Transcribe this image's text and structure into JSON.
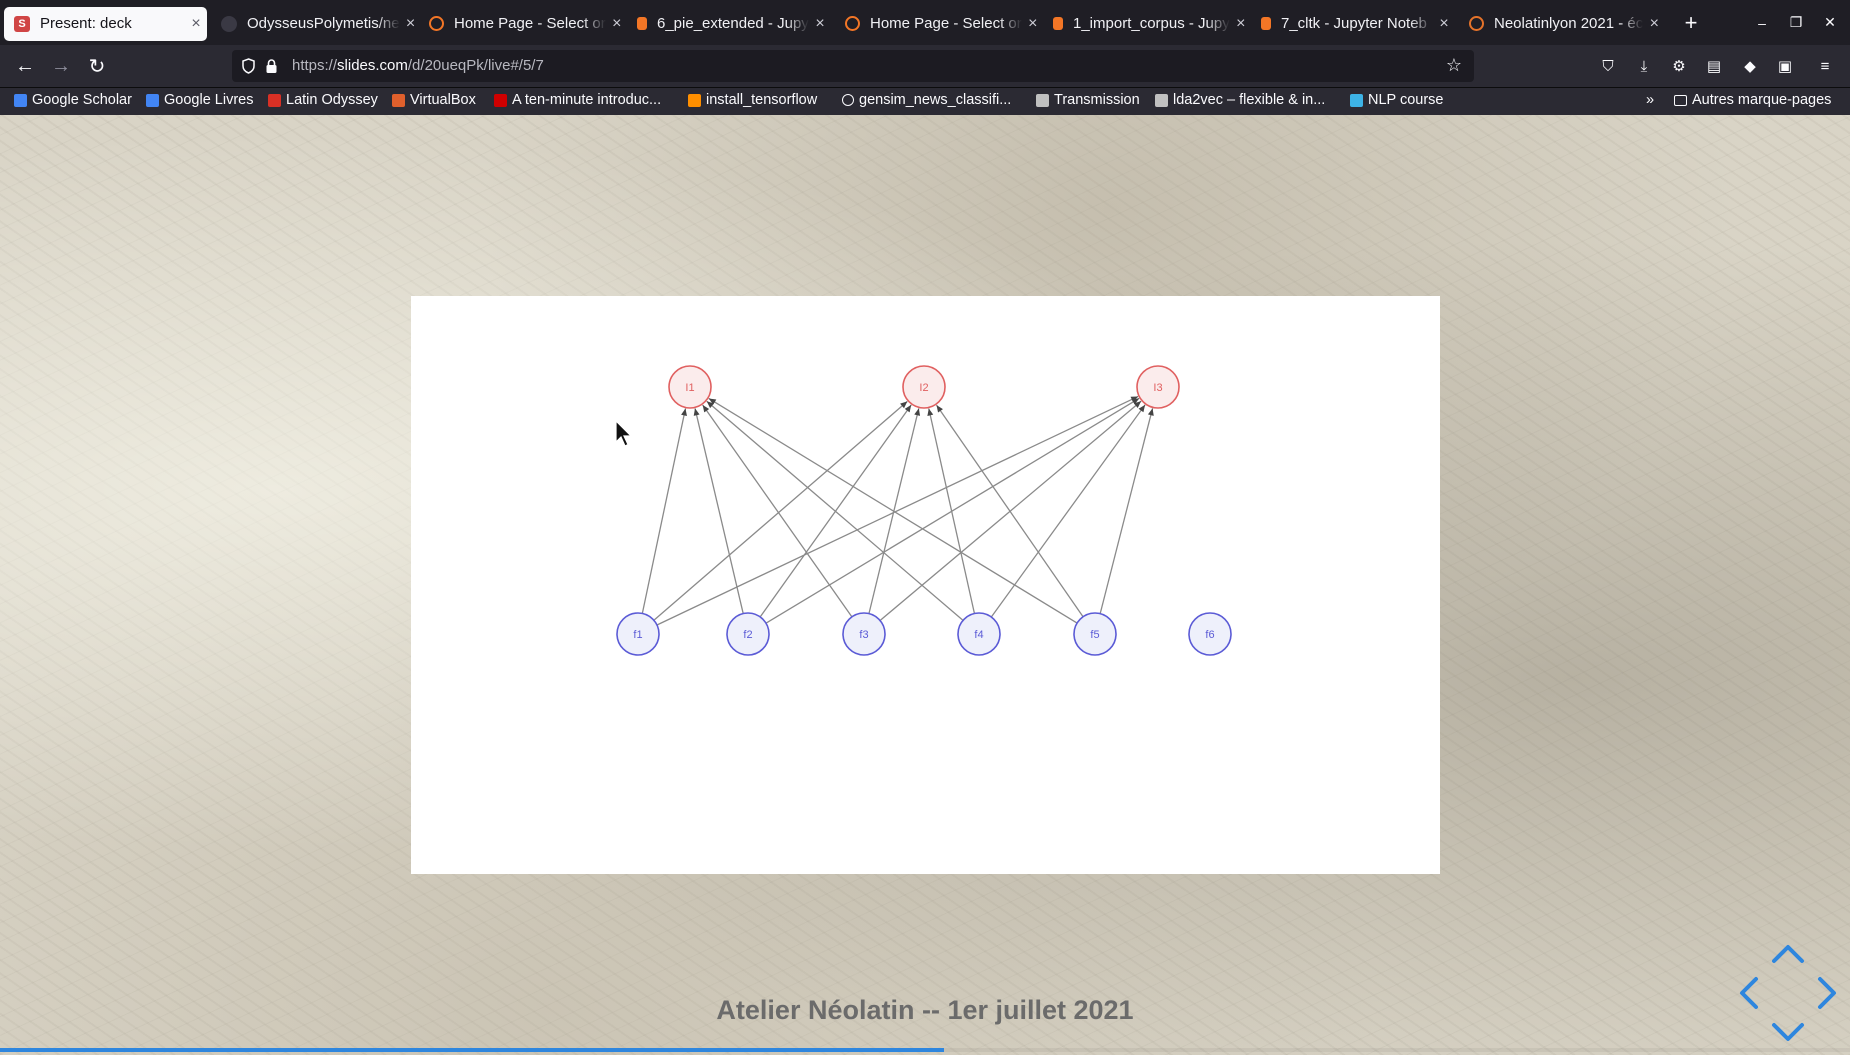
{
  "tabs": [
    {
      "title": "Present: deck",
      "active": true,
      "favicon": "S",
      "favicon_color": "#d04545"
    },
    {
      "title": "OdysseusPolymetis/ne",
      "favicon": "github-icon",
      "favicon_color": "#15141a"
    },
    {
      "title": "Home Page - Select or",
      "favicon": "jupyter-icon",
      "favicon_color": "#f37626"
    },
    {
      "title": "6_pie_extended - Jupy",
      "favicon": "notebook-icon",
      "favicon_color": "#f37626"
    },
    {
      "title": "Home Page - Select or",
      "favicon": "jupyter-icon",
      "favicon_color": "#f37626"
    },
    {
      "title": "1_import_corpus - Jupy",
      "favicon": "notebook-icon",
      "favicon_color": "#f37626"
    },
    {
      "title": "7_cltk - Jupyter Noteb",
      "favicon": "notebook-icon",
      "favicon_color": "#f37626"
    },
    {
      "title": "Neolatinlyon 2021 - éc",
      "favicon": "neolatin-icon",
      "favicon_color": "#e5732a"
    }
  ],
  "url": {
    "prefix": "https://",
    "host": "slides.com",
    "path": "/d/20ueqPk/live#/5/7"
  },
  "bookmarks": [
    {
      "label": "Google Scholar",
      "icon": "scholar-icon",
      "color": "#4285f4"
    },
    {
      "label": "Google Livres",
      "icon": "google-icon",
      "color": "#4285f4"
    },
    {
      "label": "Latin Odyssey",
      "icon": "latin-icon",
      "color": "#d93025"
    },
    {
      "label": "VirtualBox",
      "icon": "virtualbox-icon",
      "color": "#e0602c"
    },
    {
      "label": "A ten-minute introduc...",
      "icon": "keras-icon",
      "color": "#d00000"
    },
    {
      "label": "install_tensorflow",
      "icon": "tensorflow-icon",
      "color": "#ff8f00"
    },
    {
      "label": "gensim_news_classifi...",
      "icon": "globe-icon",
      "color": "#fbfbfe"
    },
    {
      "label": "Transmission",
      "icon": "transmission-icon",
      "color": "#c0c0c0"
    },
    {
      "label": "lda2vec – flexible & in...",
      "icon": "doc-icon",
      "color": "#c0c0c0"
    },
    {
      "label": "NLP course",
      "icon": "shield-icon",
      "color": "#3db3e6"
    }
  ],
  "other_bookmarks": "Autres marque-pages",
  "slide": {
    "inputs": [
      "I1",
      "I2",
      "I3"
    ],
    "features": [
      "f1",
      "f2",
      "f3",
      "f4",
      "f5",
      "f6"
    ],
    "edges": [
      [
        "f1",
        "I1"
      ],
      [
        "f1",
        "I2"
      ],
      [
        "f1",
        "I3"
      ],
      [
        "f2",
        "I1"
      ],
      [
        "f2",
        "I2"
      ],
      [
        "f2",
        "I3"
      ],
      [
        "f3",
        "I1"
      ],
      [
        "f3",
        "I2"
      ],
      [
        "f3",
        "I3"
      ],
      [
        "f4",
        "I1"
      ],
      [
        "f4",
        "I2"
      ],
      [
        "f4",
        "I3"
      ],
      [
        "f5",
        "I1"
      ],
      [
        "f5",
        "I2"
      ],
      [
        "f5",
        "I3"
      ]
    ],
    "input_color": "#e06060",
    "feature_color": "#5b5bd6",
    "edge_color": "#8a8a8a"
  },
  "footer_title": "Atelier Néolatin -- 1er juillet 2021",
  "progress": 0.51,
  "accent": "#2e86de"
}
